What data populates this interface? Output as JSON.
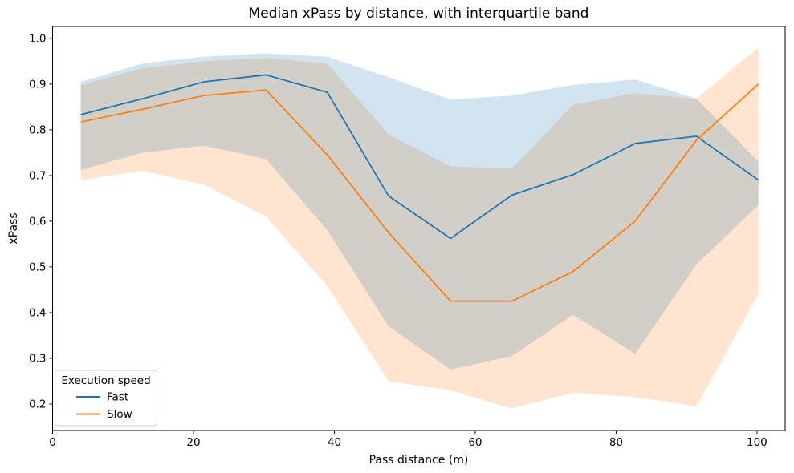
{
  "figure": {
    "title": "Median xPass by distance, with interquartile band"
  },
  "chart_data": {
    "type": "line",
    "title": "Median xPass by distance, with interquartile band",
    "xlabel": "Pass distance (m)",
    "ylabel": "xPass",
    "xlim": [
      0,
      104
    ],
    "ylim": [
      0.142,
      1.026
    ],
    "xticks": [
      0,
      20,
      40,
      60,
      80,
      100
    ],
    "yticks": [
      0.2,
      0.3,
      0.4,
      0.5,
      0.6,
      0.7,
      0.8,
      0.9,
      1.0
    ],
    "grid": false,
    "legend": {
      "title": "Execution speed",
      "position": "lower-left"
    },
    "x": [
      4.0,
      12.8,
      21.5,
      30.3,
      39.0,
      47.7,
      56.5,
      65.2,
      73.9,
      82.7,
      91.4,
      100.2
    ],
    "series": [
      {
        "name": "Fast",
        "color": "#1f77b4",
        "band_opacity": 0.2,
        "median": [
          0.833,
          0.868,
          0.905,
          0.92,
          0.882,
          0.655,
          0.562,
          0.657,
          0.702,
          0.77,
          0.786,
          0.69
        ],
        "q1": [
          0.712,
          0.75,
          0.765,
          0.736,
          0.58,
          0.37,
          0.275,
          0.305,
          0.395,
          0.31,
          0.505,
          0.635
        ],
        "q3": [
          0.905,
          0.945,
          0.96,
          0.967,
          0.96,
          0.915,
          0.866,
          0.875,
          0.898,
          0.91,
          0.868,
          0.73
        ]
      },
      {
        "name": "Slow",
        "color": "#ff7f0e",
        "band_opacity": 0.2,
        "median": [
          0.817,
          0.845,
          0.875,
          0.887,
          0.745,
          0.575,
          0.425,
          0.425,
          0.49,
          0.6,
          0.777,
          0.9
        ],
        "q1": [
          0.69,
          0.71,
          0.68,
          0.61,
          0.458,
          0.25,
          0.23,
          0.19,
          0.225,
          0.215,
          0.195,
          0.44
        ],
        "q3": [
          0.898,
          0.935,
          0.95,
          0.957,
          0.945,
          0.79,
          0.72,
          0.715,
          0.855,
          0.88,
          0.868,
          0.98
        ]
      }
    ]
  }
}
